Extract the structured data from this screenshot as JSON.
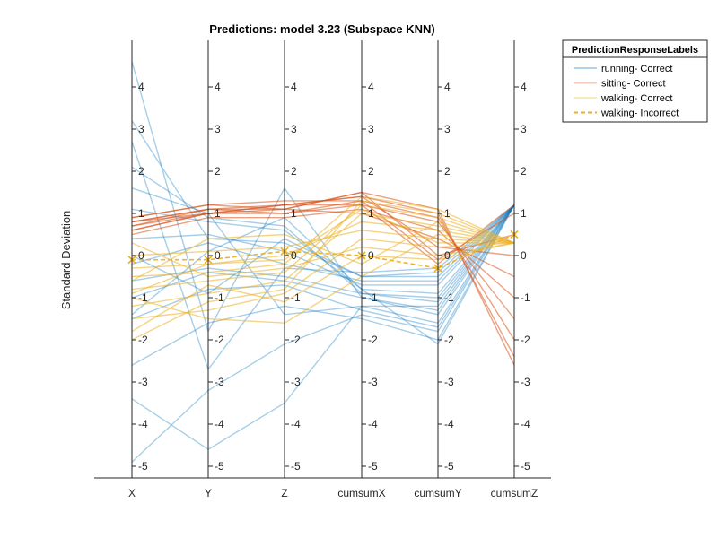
{
  "chart_data": {
    "type": "parallel-coordinates",
    "title": "Predictions: model 3.23 (Subspace KNN)",
    "ylabel": "Standard Deviation",
    "ylim": [
      -5.2,
      5.2
    ],
    "yticks": [
      -5,
      -4,
      -3,
      -2,
      -1,
      0,
      1,
      2,
      3,
      4
    ],
    "categories": [
      "X",
      "Y",
      "Z",
      "cumsumX",
      "cumsumY",
      "cumsumZ"
    ],
    "legend": {
      "title": "PredictionResponseLabels",
      "position": "outside-top-right"
    },
    "series": [
      {
        "name": "running- Correct",
        "color": "#0072BD",
        "style": "solid",
        "lines": [
          [
            -0.6,
            -0.3,
            -0.5,
            -0.9,
            -1.1,
            1.2
          ],
          [
            -1.0,
            -0.4,
            -0.6,
            -1.0,
            -1.3,
            1.2
          ],
          [
            -1.5,
            -0.8,
            -0.7,
            -1.3,
            -1.7,
            1.2
          ],
          [
            -0.2,
            0.3,
            -0.2,
            -0.6,
            -0.6,
            1.2
          ],
          [
            0.4,
            0.5,
            0.1,
            -0.7,
            -0.7,
            1.2
          ],
          [
            1.1,
            0.8,
            0.6,
            -0.8,
            -0.9,
            1.2
          ],
          [
            2.1,
            0.9,
            0.7,
            -0.9,
            -1.0,
            1.2
          ],
          [
            3.2,
            0.4,
            0.3,
            -0.5,
            -0.5,
            1.2
          ],
          [
            -2.6,
            -1.6,
            -1.2,
            -1.5,
            -2.0,
            1.2
          ],
          [
            -4.9,
            -3.2,
            -2.1,
            -1.4,
            -1.8,
            1.2
          ],
          [
            4.6,
            -1.8,
            1.6,
            -1.0,
            -1.4,
            1.2
          ],
          [
            -3.4,
            -4.6,
            -3.5,
            -1.2,
            -1.6,
            1.2
          ],
          [
            0.0,
            -0.9,
            0.4,
            -0.5,
            -0.4,
            1.2
          ],
          [
            1.6,
            1.0,
            -1.4,
            -1.2,
            -1.2,
            1.2
          ],
          [
            -1.4,
            0.1,
            0.9,
            -0.8,
            -2.1,
            1.2
          ],
          [
            2.7,
            -2.7,
            -0.3,
            -0.4,
            -0.3,
            1.2
          ]
        ]
      },
      {
        "name": "sitting- Correct",
        "color": "#D95319",
        "style": "solid",
        "lines": [
          [
            0.6,
            1.0,
            1.1,
            1.5,
            1.1,
            -2.6
          ],
          [
            0.8,
            1.1,
            1.2,
            1.4,
            1.0,
            -2.4
          ],
          [
            0.9,
            1.2,
            1.3,
            1.3,
            0.9,
            -2.0
          ],
          [
            0.7,
            1.0,
            1.0,
            1.2,
            0.8,
            -1.5
          ],
          [
            0.5,
            0.9,
            0.9,
            1.1,
            0.6,
            -1.0
          ],
          [
            0.8,
            1.1,
            1.1,
            1.0,
            0.4,
            -0.5
          ],
          [
            0.6,
            1.0,
            1.2,
            1.4,
            0.2,
            0.0
          ],
          [
            0.9,
            1.2,
            1.1,
            1.5,
            0.0,
            0.5
          ],
          [
            0.7,
            1.1,
            1.0,
            1.3,
            -0.1,
            1.0
          ],
          [
            0.8,
            1.0,
            1.2,
            1.2,
            -0.2,
            1.2
          ]
        ]
      },
      {
        "name": "walking- Correct",
        "color": "#EDB120",
        "style": "solid",
        "lines": [
          [
            -0.5,
            -0.4,
            -0.2,
            1.4,
            1.1,
            0.3
          ],
          [
            -0.8,
            -0.6,
            -0.4,
            1.2,
            0.9,
            0.3
          ],
          [
            -1.2,
            -0.9,
            -0.6,
            1.0,
            0.7,
            0.3
          ],
          [
            -0.3,
            -0.2,
            0.0,
            0.8,
            0.6,
            0.3
          ],
          [
            0.0,
            0.1,
            0.2,
            0.6,
            0.4,
            0.3
          ],
          [
            -1.5,
            -1.3,
            -0.9,
            0.4,
            0.2,
            0.3
          ],
          [
            0.3,
            -0.5,
            -0.3,
            0.2,
            0.0,
            0.3
          ],
          [
            -1.8,
            -0.7,
            -1.1,
            0.0,
            -0.1,
            0.3
          ],
          [
            -0.6,
            0.4,
            0.5,
            -0.2,
            0.8,
            0.3
          ],
          [
            -1.0,
            -1.5,
            -1.6,
            -0.5,
            0.5,
            0.3
          ],
          [
            -2.0,
            -1.1,
            -0.8,
            1.3,
            1.0,
            0.3
          ],
          [
            -0.9,
            -0.2,
            -0.1,
            1.1,
            0.3,
            0.3
          ]
        ]
      },
      {
        "name": "walking- Incorrect",
        "color": "#EDB120",
        "style": "dashed",
        "marker": "x",
        "lines": [
          [
            -0.1,
            -0.1,
            0.1,
            0.0,
            -0.3,
            0.5
          ]
        ]
      }
    ]
  }
}
